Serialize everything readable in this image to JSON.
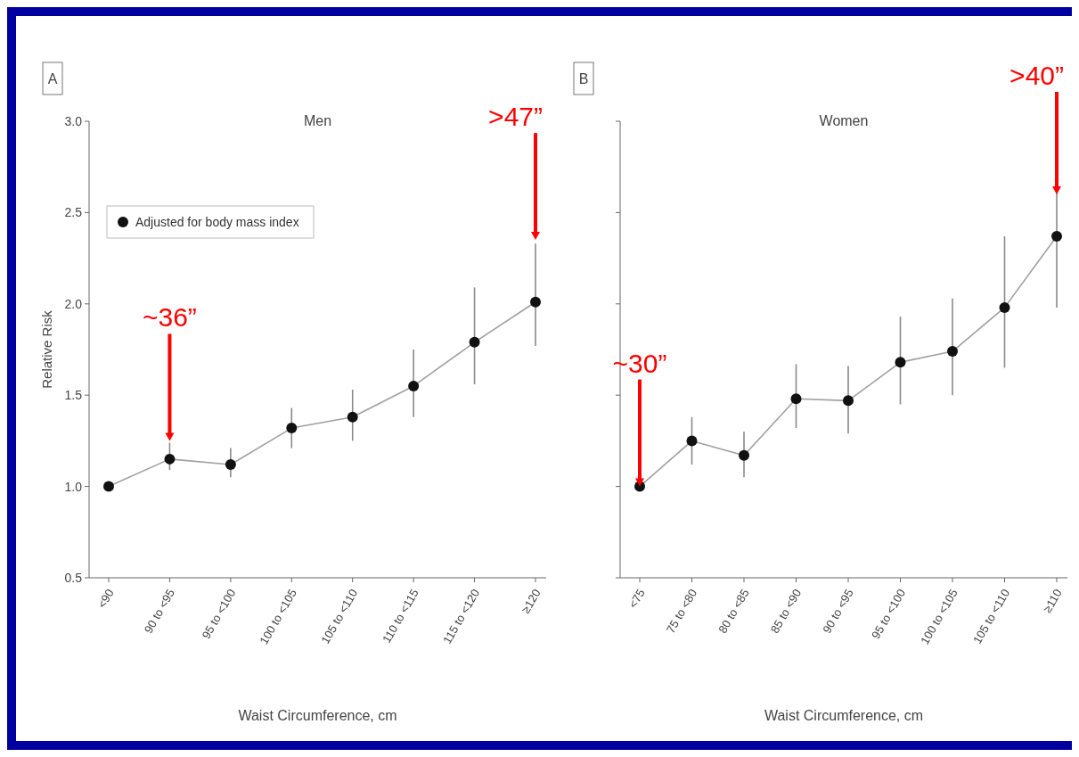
{
  "chart_data": [
    {
      "type": "line",
      "title": "Men",
      "xlabel": "Waist Circumference, cm",
      "ylabel": "Relative Risk",
      "categories": [
        "<90",
        "90 to <95",
        "95 to <100",
        "100 to <105",
        "105 to <110",
        "110 to <115",
        "115 to <120",
        "≥120"
      ],
      "series": [
        {
          "name": "Adjusted for body mass index",
          "color": "#111111",
          "values": [
            1.0,
            1.15,
            1.12,
            1.32,
            1.38,
            1.55,
            1.79,
            2.01
          ],
          "errors": [
            null,
            [
              1.09,
              1.24
            ],
            [
              1.05,
              1.21
            ],
            [
              1.21,
              1.43
            ],
            [
              1.25,
              1.53
            ],
            [
              1.38,
              1.75
            ],
            [
              1.56,
              2.09
            ],
            [
              1.77,
              2.33
            ]
          ]
        }
      ],
      "ylim": [
        0.5,
        3.0
      ],
      "yticks": [
        {
          "value": 0.5,
          "label": "0.5"
        },
        {
          "value": 1,
          "label": "1.0"
        },
        {
          "value": 1.5,
          "label": "1.5"
        },
        {
          "value": 2,
          "label": "2.0"
        },
        {
          "value": 2.5,
          "label": "2.5"
        },
        {
          "value": 3,
          "label": "3.0"
        }
      ],
      "marker": "circle",
      "line_style": "solid",
      "legend": "top left",
      "annotations": [
        "A",
        {
          "text": "~36”",
          "x": "90 to <95",
          "y": 1.25
        },
        {
          "text": ">47”",
          "x": "≥120",
          "y": 2.35
        }
      ]
    },
    {
      "type": "line",
      "title": "Women",
      "xlabel": "Waist Circumference, cm",
      "categories": [
        "<75",
        "75 to <80",
        "80 to <85",
        "85 to <90",
        "90 to <95",
        "95 to <100",
        "100 to <105",
        "105 to <110",
        "≥110"
      ],
      "series": [
        {
          "color": "#111111",
          "values": [
            1.0,
            1.25,
            1.17,
            1.48,
            1.47,
            1.68,
            1.74,
            1.98,
            2.37
          ],
          "errors": [
            null,
            [
              1.12,
              1.38
            ],
            [
              1.05,
              1.3
            ],
            [
              1.32,
              1.67
            ],
            [
              1.29,
              1.66
            ],
            [
              1.45,
              1.93
            ],
            [
              1.5,
              2.03
            ],
            [
              1.65,
              2.37
            ],
            [
              1.98,
              2.82
            ]
          ]
        }
      ],
      "ylim": [
        0.5,
        3.0
      ],
      "yticks": [
        0.5,
        1,
        1.5,
        2,
        2.5,
        3
      ],
      "tick_labels": "x",
      "marker": "circle",
      "line_style": "solid",
      "annotations": [
        "B",
        {
          "text": "~30”",
          "x": "<75",
          "y": 1.0
        },
        {
          "text": ">40”",
          "x": "≥110",
          "y": 2.6
        }
      ]
    }
  ]
}
